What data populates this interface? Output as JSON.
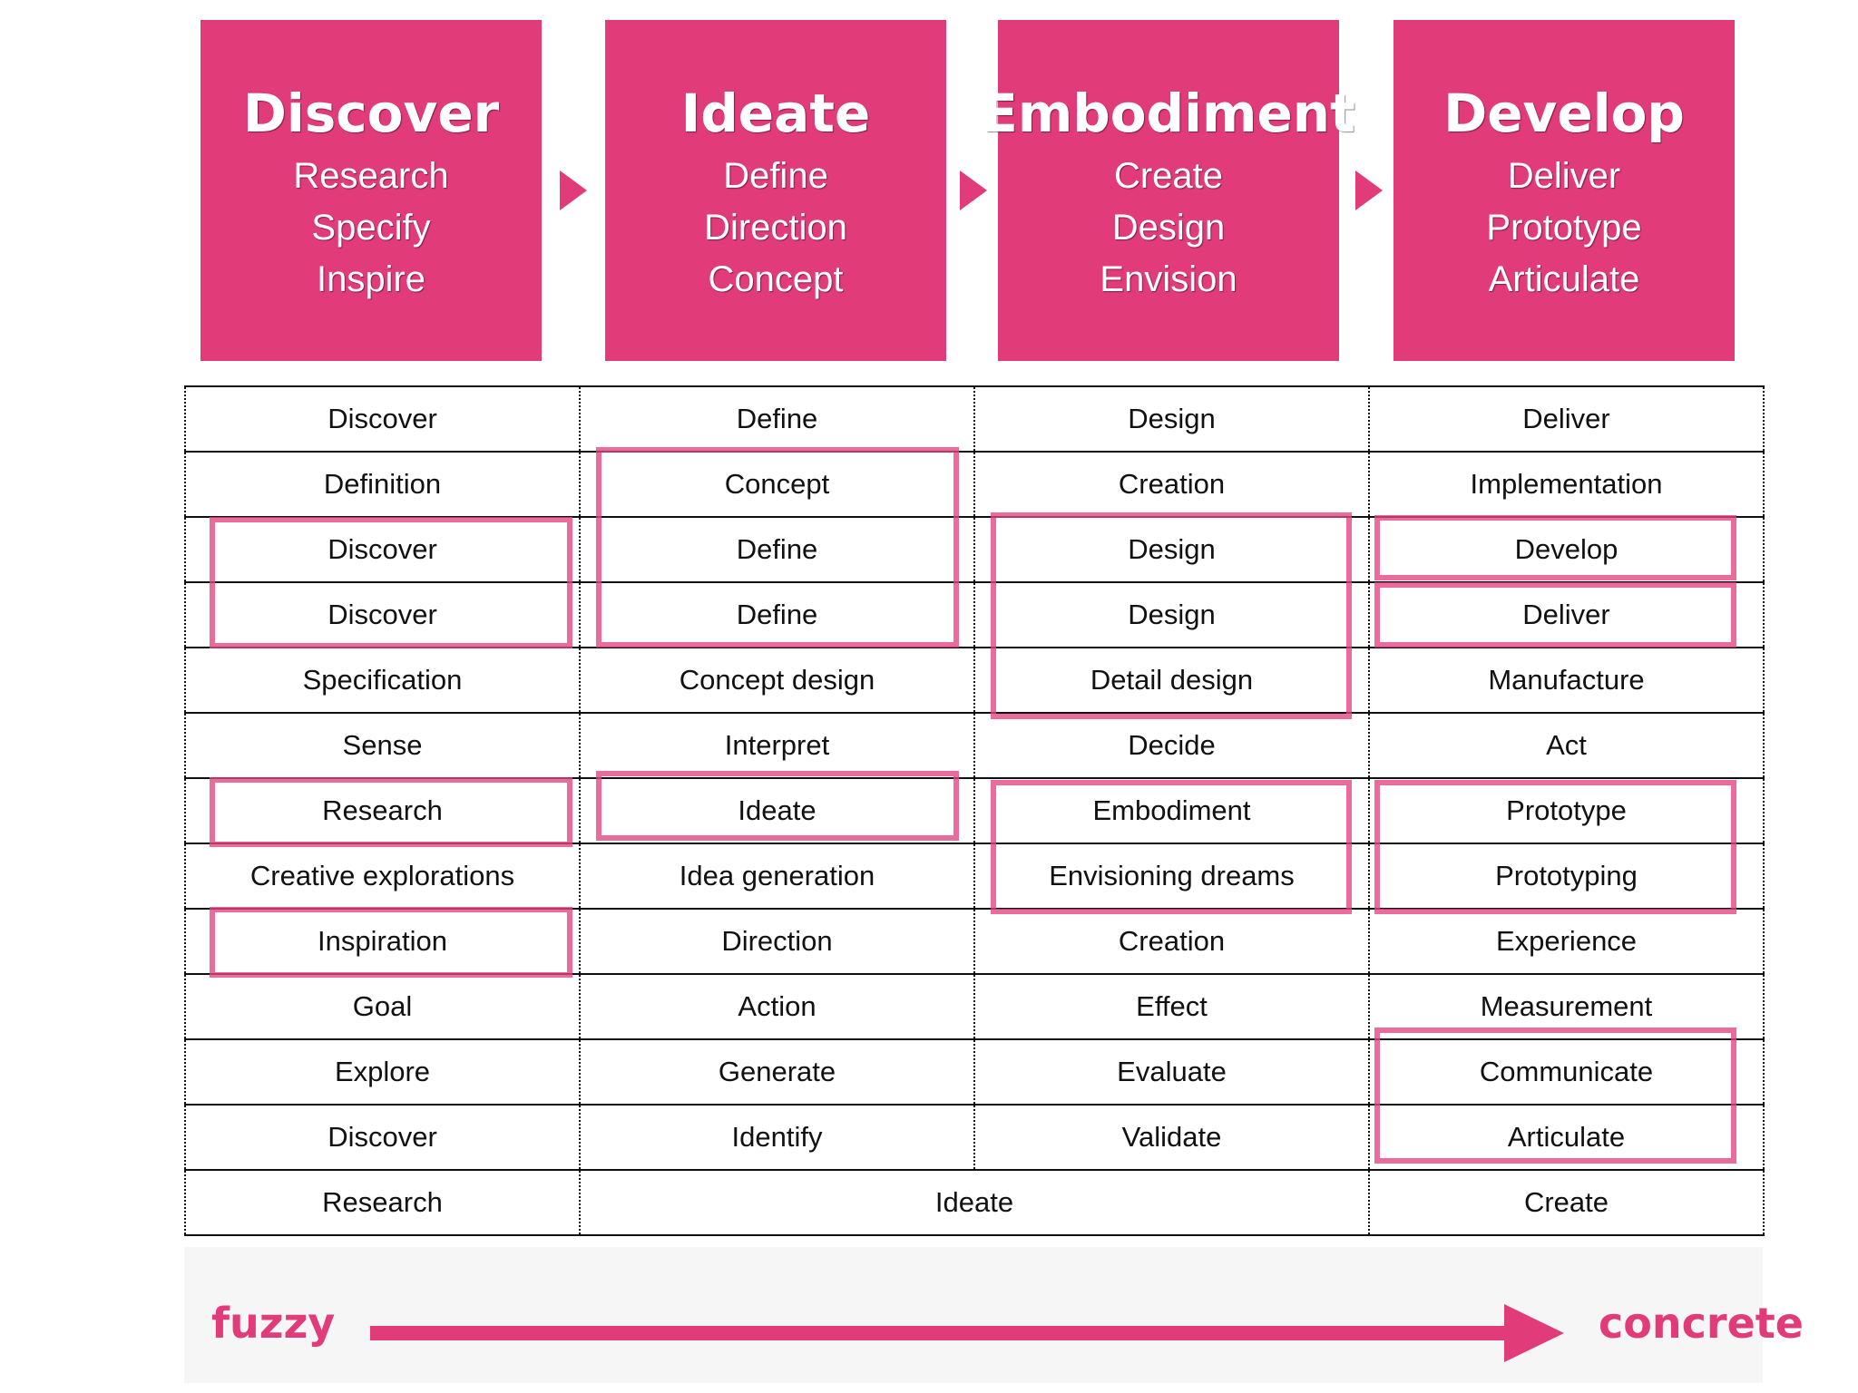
{
  "colors": {
    "accent": "#e23b7a",
    "text": "#111111",
    "background": "#ffffff"
  },
  "phases": [
    {
      "title": "Discover",
      "items": [
        "Research",
        "Specify",
        "Inspire"
      ]
    },
    {
      "title": "Ideate",
      "items": [
        "Define",
        "Direction",
        "Concept"
      ]
    },
    {
      "title": "Embodiment",
      "items": [
        "Create",
        "Design",
        "Envision"
      ]
    },
    {
      "title": "Develop",
      "items": [
        "Deliver",
        "Prototype",
        "Articulate"
      ]
    }
  ],
  "table": {
    "rows": [
      [
        "Discover",
        "Define",
        "Design",
        "Deliver"
      ],
      [
        "Definition",
        "Concept",
        "Creation",
        "Implementation"
      ],
      [
        "Discover",
        "Define",
        "Design",
        "Develop"
      ],
      [
        "Discover",
        "Define",
        "Design",
        "Deliver"
      ],
      [
        "Specification",
        "Concept design",
        "Detail design",
        "Manufacture"
      ],
      [
        "Sense",
        "Interpret",
        "Decide",
        "Act"
      ],
      [
        "Research",
        "Ideate",
        "Embodiment",
        "Prototype"
      ],
      [
        "Creative explorations",
        "Idea generation",
        "Envisioning dreams",
        "Prototyping"
      ],
      [
        "Inspiration",
        "Direction",
        "Creation",
        "Experience"
      ],
      [
        "Goal",
        "Action",
        "Effect",
        "Measurement"
      ],
      [
        "Explore",
        "Generate",
        "Evaluate",
        "Communicate"
      ],
      [
        "Discover",
        "Identify",
        "Validate",
        "Articulate"
      ]
    ],
    "last_row": {
      "col1": "Research",
      "col2_3": "Ideate",
      "col4": "Create"
    }
  },
  "scale": {
    "left": "fuzzy",
    "right": "concrete"
  }
}
